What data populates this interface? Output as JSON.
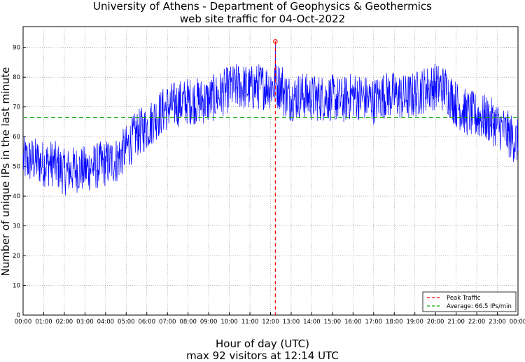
{
  "chart_data": {
    "type": "line",
    "title": "University of Athens - Department of Geophysics & Geothermics",
    "subtitle": "web site traffic for 04-Oct-2022",
    "xlabel": "Hour of day (UTC)",
    "ylabel": "Number of unique IPs in the last minute",
    "footer": "max 92 visitors at 12:14 UTC",
    "x_tick_labels": [
      "00:00",
      "01:00",
      "02:00",
      "03:00",
      "04:00",
      "05:00",
      "06:00",
      "07:00",
      "08:00",
      "09:00",
      "10:00",
      "11:00",
      "12:00",
      "13:00",
      "14:00",
      "15:00",
      "16:00",
      "17:00",
      "18:00",
      "19:00",
      "20:00",
      "21:00",
      "22:00",
      "23:00",
      "00:00"
    ],
    "xlim": [
      0,
      24
    ],
    "ylim": [
      0,
      97
    ],
    "y_ticks": [
      0,
      10,
      20,
      30,
      40,
      50,
      60,
      70,
      80,
      90
    ],
    "grid": true,
    "legend_position": "bottom-right",
    "series": [
      {
        "name": "",
        "color": "#0000ff",
        "style": "solid",
        "x_hours": [
          0,
          0.5,
          1,
          1.5,
          2,
          2.5,
          3,
          3.5,
          4,
          4.5,
          5,
          5.5,
          6,
          6.5,
          7,
          7.5,
          8,
          8.5,
          9,
          9.5,
          10,
          10.5,
          11,
          11.5,
          12,
          12.233,
          12.5,
          13,
          13.5,
          14,
          14.5,
          15,
          15.5,
          16,
          16.5,
          17,
          17.5,
          18,
          18.5,
          19,
          19.5,
          20,
          20.5,
          21,
          21.5,
          22,
          22.5,
          23,
          23.5,
          24
        ],
        "values": [
          52,
          52,
          51,
          51,
          48,
          49,
          49,
          50,
          51,
          52,
          56,
          61,
          63,
          67,
          70,
          71,
          72,
          72,
          72,
          74,
          76,
          77,
          76,
          77,
          77,
          92,
          75,
          73,
          74,
          73,
          73,
          73,
          72,
          74,
          73,
          72,
          74,
          74,
          73,
          74,
          76,
          77,
          76,
          71,
          68,
          67,
          66,
          64,
          61,
          58
        ],
        "peak_marker": {
          "x_hours": 12.233,
          "value": 92
        }
      },
      {
        "name": "Peak Traffic",
        "color": "#ff0000",
        "style": "dashed",
        "x_hours": 12.233
      },
      {
        "name": "Average: 66.5 IPs/min",
        "color": "#00aa00",
        "style": "dashed",
        "value": 66.5
      }
    ]
  },
  "legend": {
    "peak_label": "Peak Traffic",
    "average_label": "Average: 66.5 IPs/min"
  }
}
